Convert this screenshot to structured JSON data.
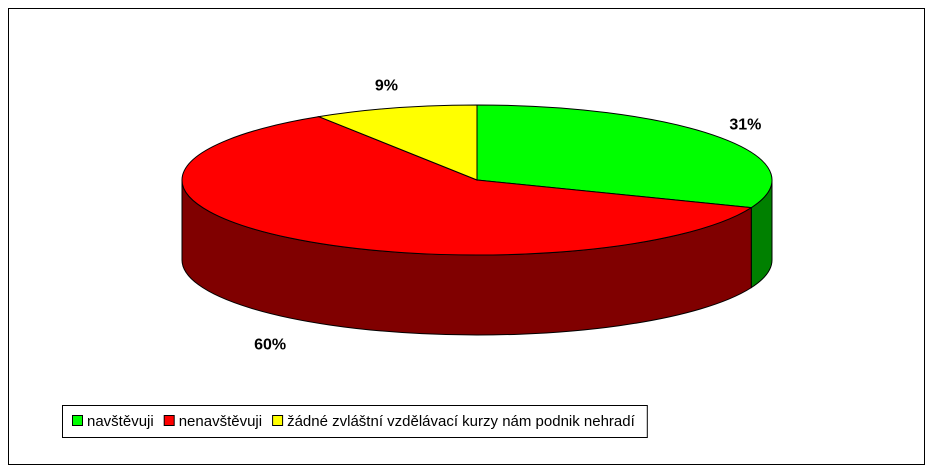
{
  "chart_data": {
    "type": "pie3d",
    "categories": [
      "navštěvuji",
      "nenavštěvuji",
      "žádné zvláštní vzdělávací kurzy nám podnik nehradí"
    ],
    "values": [
      31,
      60,
      9
    ],
    "value_labels": [
      "31%",
      "60%",
      "9%"
    ],
    "colors": [
      "#00ff00",
      "#ff0000",
      "#ffff00"
    ],
    "side_colors": [
      "#008000",
      "#800000",
      "#808000"
    ]
  }
}
